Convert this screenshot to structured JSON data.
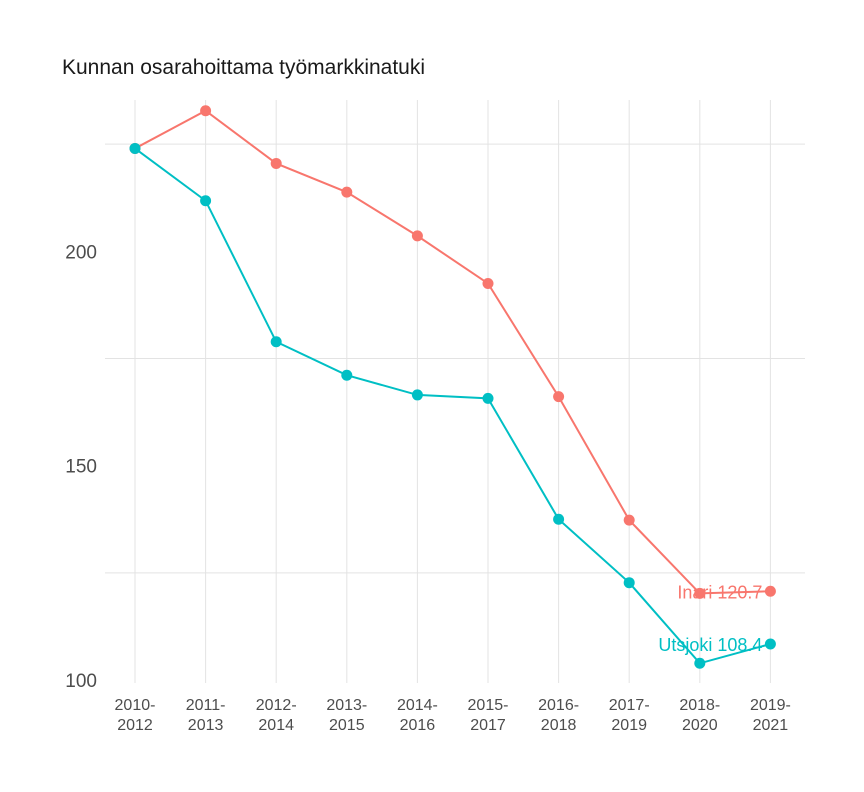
{
  "chart_data": {
    "type": "line",
    "title": "Kunnan osarahoittama työmarkkinatuki",
    "xlabel": "",
    "ylabel": "",
    "categories": [
      [
        "2010-",
        "2012"
      ],
      [
        "2011-",
        "2013"
      ],
      [
        "2012-",
        "2014"
      ],
      [
        "2013-",
        "2015"
      ],
      [
        "2014-",
        "2016"
      ],
      [
        "2015-",
        "2017"
      ],
      [
        "2016-",
        "2018"
      ],
      [
        "2017-",
        "2019"
      ],
      [
        "2018-",
        "2020"
      ],
      [
        "2019-",
        "2021"
      ]
    ],
    "ylim": [
      100,
      236
    ],
    "yticks": [
      100,
      150,
      200
    ],
    "ygrid_minor": [
      125,
      175,
      225
    ],
    "grid": true,
    "legend": "none",
    "series": [
      {
        "name": "Inari",
        "color": "#F8766D",
        "values": [
          224.0,
          232.8,
          220.5,
          213.8,
          203.6,
          192.5,
          166.1,
          137.3,
          120.2,
          120.7
        ],
        "end_label": "Inari 120.7"
      },
      {
        "name": "Utsjoki",
        "color": "#00BFC4",
        "values": [
          224.0,
          211.8,
          178.9,
          171.1,
          166.5,
          165.7,
          137.5,
          122.7,
          103.9,
          108.4
        ],
        "end_label": "Utsjoki 108.4"
      }
    ]
  }
}
